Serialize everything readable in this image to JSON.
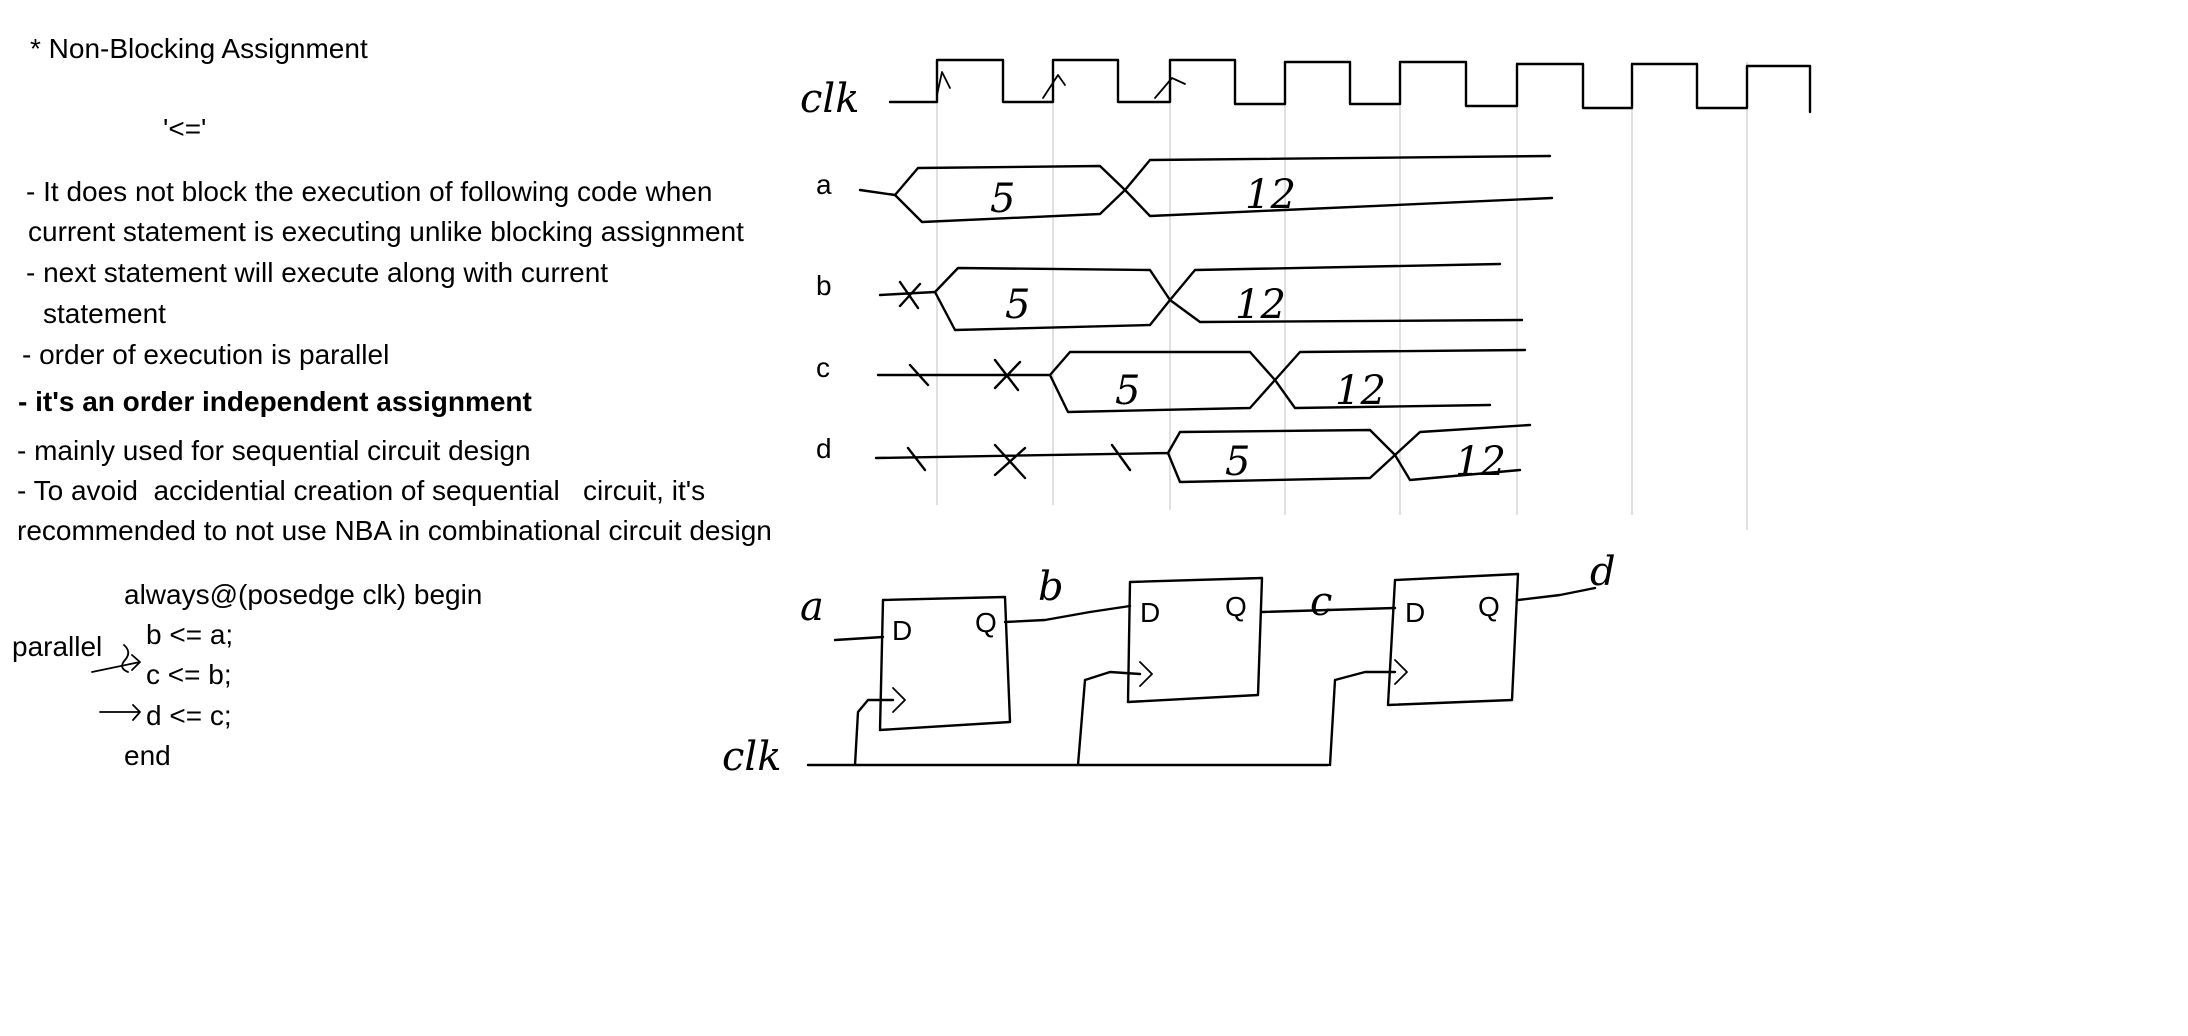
{
  "title": "* Non-Blocking Assignment",
  "operator": "'<='",
  "bullets": {
    "b1_line1": "- It does not block the execution of following code when",
    "b1_line2": "current statement is executing unlike blocking assignment",
    "b2_line1": "- next statement will execute along with current",
    "b2_line2": "statement",
    "b3": "- order of execution is parallel",
    "b4": "- it's an order independent assignment",
    "b5": "- mainly used for sequential circuit design",
    "b6_line1": "- To avoid  accidential creation of sequential   circuit, it's",
    "b6_line2": "recommended to not use NBA in combinational circuit design"
  },
  "code": {
    "line1": "always@(posedge clk) begin",
    "line2": "b <= a;",
    "line3": "c <= b;",
    "line4": "d <= c;",
    "line5": "end",
    "note": "parallel"
  },
  "timing": {
    "clock_label": "clk",
    "signals": [
      {
        "name": "a",
        "first_value": "5",
        "second_value": "12"
      },
      {
        "name": "b",
        "first_value": "5",
        "second_value": "12"
      },
      {
        "name": "c",
        "first_value": "5",
        "second_value": "12"
      },
      {
        "name": "d",
        "first_value": "5",
        "second_value": "12"
      }
    ]
  },
  "circuit": {
    "input_label": "a",
    "clock_label": "clk",
    "wire_labels": [
      "b",
      "c",
      "d"
    ],
    "flipflop_d_label": "D",
    "flipflop_q_label": "Q"
  }
}
